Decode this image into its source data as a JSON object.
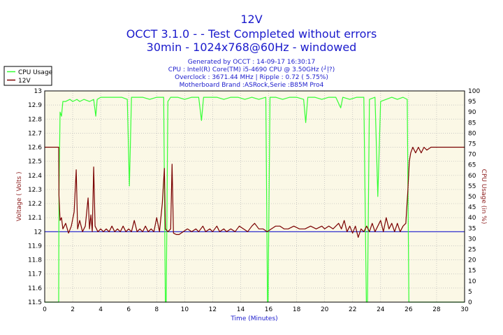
{
  "header": {
    "title": "12V",
    "line2": "OCCT 3.1.0 -  - Test Completed without errors",
    "line3": "30min - 1024x768@60Hz - windowed",
    "info": [
      "Generated by OCCT : 14-09-17 16:30:17",
      "CPU : Intel(R) Core(TM) i5-4690 CPU @ 3.50GHz (┘ļ?)",
      "Overclock : 3671.44 MHz | Ripple : 0.72 ( 5.75%)",
      "Motherboard Brand :ASRock,Serie :B85M Pro4"
    ]
  },
  "colors": {
    "background": "#fbf8e6",
    "grid": "#b8b8b8",
    "cpu_usage": "#33ff33",
    "voltage": "#7a0000",
    "reference": "#1a1acc",
    "title": "#1a1acc"
  },
  "chart_data": {
    "type": "line",
    "xlabel": "Time (Minutes)",
    "ylabel": "Voltage ( Volts )",
    "y2label": "CPU Usage (in %)",
    "xlim": [
      0,
      30
    ],
    "ylim": [
      11.5,
      13
    ],
    "y2lim": [
      0,
      100
    ],
    "x_ticks": [
      "0",
      "2",
      "4",
      "6",
      "8",
      "10",
      "12",
      "14",
      "16",
      "18",
      "20",
      "22",
      "24",
      "26",
      "28",
      "30"
    ],
    "y_ticks": [
      "11.5",
      "11.6",
      "11.7",
      "11.8",
      "11.9",
      "12",
      "12.1",
      "12.2",
      "12.3",
      "12.4",
      "12.5",
      "12.6",
      "12.7",
      "12.8",
      "12.9",
      "13"
    ],
    "y2_ticks": [
      "0",
      "5",
      "10",
      "15",
      "20",
      "25",
      "30",
      "35",
      "40",
      "45",
      "50",
      "55",
      "60",
      "65",
      "70",
      "75",
      "80",
      "85",
      "90",
      "95",
      "100"
    ],
    "grid": true,
    "legend_position": "top-left",
    "reference_line": 12.0,
    "series": [
      {
        "name": "CPU Usage",
        "axis": "right",
        "points": [
          [
            0,
            0
          ],
          [
            1.0,
            0
          ],
          [
            1.02,
            50
          ],
          [
            1.1,
            90
          ],
          [
            1.2,
            88
          ],
          [
            1.3,
            95
          ],
          [
            1.5,
            95
          ],
          [
            1.8,
            96
          ],
          [
            2.0,
            95
          ],
          [
            2.3,
            96
          ],
          [
            2.5,
            95
          ],
          [
            2.8,
            96
          ],
          [
            3.2,
            95
          ],
          [
            3.5,
            96
          ],
          [
            3.65,
            88
          ],
          [
            3.75,
            96
          ],
          [
            4.0,
            97
          ],
          [
            4.5,
            97
          ],
          [
            5.0,
            97
          ],
          [
            5.5,
            97
          ],
          [
            5.9,
            96
          ],
          [
            6.05,
            55
          ],
          [
            6.2,
            97
          ],
          [
            6.5,
            97
          ],
          [
            7.0,
            97
          ],
          [
            7.5,
            96
          ],
          [
            8.0,
            97
          ],
          [
            8.5,
            97
          ],
          [
            8.62,
            0
          ],
          [
            8.68,
            0
          ],
          [
            8.8,
            95
          ],
          [
            9.0,
            97
          ],
          [
            9.5,
            97
          ],
          [
            10.0,
            96
          ],
          [
            10.5,
            97
          ],
          [
            11.0,
            97
          ],
          [
            11.2,
            86
          ],
          [
            11.35,
            97
          ],
          [
            11.8,
            97
          ],
          [
            12.3,
            97
          ],
          [
            12.8,
            96
          ],
          [
            13.3,
            97
          ],
          [
            13.8,
            97
          ],
          [
            14.3,
            96
          ],
          [
            14.8,
            97
          ],
          [
            15.3,
            96
          ],
          [
            15.8,
            97
          ],
          [
            15.92,
            0
          ],
          [
            15.96,
            0
          ],
          [
            16.1,
            97
          ],
          [
            16.5,
            97
          ],
          [
            17.0,
            96
          ],
          [
            17.5,
            97
          ],
          [
            18.0,
            97
          ],
          [
            18.5,
            96
          ],
          [
            18.65,
            85
          ],
          [
            18.8,
            97
          ],
          [
            19.3,
            97
          ],
          [
            19.8,
            96
          ],
          [
            20.3,
            97
          ],
          [
            20.8,
            97
          ],
          [
            21.15,
            92
          ],
          [
            21.3,
            97
          ],
          [
            21.8,
            96
          ],
          [
            22.3,
            97
          ],
          [
            22.8,
            97
          ],
          [
            22.98,
            0
          ],
          [
            23.06,
            0
          ],
          [
            23.2,
            96
          ],
          [
            23.6,
            97
          ],
          [
            23.8,
            50
          ],
          [
            24.0,
            95
          ],
          [
            24.4,
            96
          ],
          [
            24.8,
            97
          ],
          [
            25.2,
            96
          ],
          [
            25.6,
            97
          ],
          [
            25.9,
            96
          ],
          [
            26.02,
            0
          ],
          [
            26.2,
            0
          ],
          [
            30,
            0
          ]
        ]
      },
      {
        "name": "12V",
        "axis": "left",
        "points": [
          [
            0,
            12.6
          ],
          [
            1.0,
            12.6
          ],
          [
            1.02,
            12.26
          ],
          [
            1.1,
            12.08
          ],
          [
            1.2,
            12.1
          ],
          [
            1.3,
            12.02
          ],
          [
            1.5,
            12.06
          ],
          [
            1.7,
            11.99
          ],
          [
            1.9,
            12.04
          ],
          [
            2.1,
            12.14
          ],
          [
            2.25,
            12.44
          ],
          [
            2.35,
            12.02
          ],
          [
            2.5,
            12.08
          ],
          [
            2.7,
            12.0
          ],
          [
            2.9,
            12.04
          ],
          [
            3.1,
            12.24
          ],
          [
            3.2,
            12.02
          ],
          [
            3.3,
            12.12
          ],
          [
            3.4,
            12.0
          ],
          [
            3.5,
            12.46
          ],
          [
            3.6,
            12.04
          ],
          [
            3.8,
            12.0
          ],
          [
            4.0,
            12.02
          ],
          [
            4.2,
            12.0
          ],
          [
            4.4,
            12.02
          ],
          [
            4.6,
            12.0
          ],
          [
            4.8,
            12.04
          ],
          [
            5.0,
            12.0
          ],
          [
            5.2,
            12.02
          ],
          [
            5.4,
            12.0
          ],
          [
            5.6,
            12.04
          ],
          [
            5.8,
            12.0
          ],
          [
            6.0,
            12.02
          ],
          [
            6.2,
            12.0
          ],
          [
            6.4,
            12.08
          ],
          [
            6.6,
            12.0
          ],
          [
            6.8,
            12.02
          ],
          [
            7.0,
            12.0
          ],
          [
            7.2,
            12.04
          ],
          [
            7.4,
            12.0
          ],
          [
            7.6,
            12.02
          ],
          [
            7.8,
            12.0
          ],
          [
            8.0,
            12.1
          ],
          [
            8.2,
            12.0
          ],
          [
            8.4,
            12.2
          ],
          [
            8.55,
            12.45
          ],
          [
            8.62,
            12.02
          ],
          [
            8.8,
            12.0
          ],
          [
            9.0,
            12.02
          ],
          [
            9.1,
            12.48
          ],
          [
            9.2,
            11.99
          ],
          [
            9.4,
            11.98
          ],
          [
            9.6,
            11.98
          ],
          [
            9.9,
            12.0
          ],
          [
            10.2,
            12.02
          ],
          [
            10.5,
            12.0
          ],
          [
            10.8,
            12.02
          ],
          [
            11.0,
            12.0
          ],
          [
            11.3,
            12.04
          ],
          [
            11.5,
            12.0
          ],
          [
            11.8,
            12.02
          ],
          [
            12.0,
            12.0
          ],
          [
            12.3,
            12.04
          ],
          [
            12.5,
            12.0
          ],
          [
            12.8,
            12.02
          ],
          [
            13.0,
            12.0
          ],
          [
            13.3,
            12.02
          ],
          [
            13.6,
            12.0
          ],
          [
            13.9,
            12.04
          ],
          [
            14.2,
            12.02
          ],
          [
            14.5,
            12.0
          ],
          [
            14.8,
            12.04
          ],
          [
            15.0,
            12.06
          ],
          [
            15.3,
            12.02
          ],
          [
            15.6,
            12.02
          ],
          [
            15.9,
            12.0
          ],
          [
            16.2,
            12.02
          ],
          [
            16.5,
            12.04
          ],
          [
            16.8,
            12.04
          ],
          [
            17.1,
            12.02
          ],
          [
            17.4,
            12.02
          ],
          [
            17.8,
            12.04
          ],
          [
            18.2,
            12.02
          ],
          [
            18.6,
            12.02
          ],
          [
            19.0,
            12.04
          ],
          [
            19.4,
            12.02
          ],
          [
            19.8,
            12.04
          ],
          [
            20.0,
            12.02
          ],
          [
            20.3,
            12.04
          ],
          [
            20.6,
            12.02
          ],
          [
            21.0,
            12.06
          ],
          [
            21.2,
            12.02
          ],
          [
            21.4,
            12.08
          ],
          [
            21.6,
            12.0
          ],
          [
            21.8,
            12.04
          ],
          [
            22.0,
            11.99
          ],
          [
            22.2,
            12.04
          ],
          [
            22.4,
            11.96
          ],
          [
            22.6,
            12.02
          ],
          [
            22.8,
            12.0
          ],
          [
            23.0,
            12.04
          ],
          [
            23.2,
            12.0
          ],
          [
            23.4,
            12.06
          ],
          [
            23.6,
            12.0
          ],
          [
            23.8,
            12.04
          ],
          [
            24.0,
            12.08
          ],
          [
            24.2,
            12.0
          ],
          [
            24.4,
            12.1
          ],
          [
            24.6,
            12.02
          ],
          [
            24.8,
            12.06
          ],
          [
            25.0,
            12.0
          ],
          [
            25.2,
            12.06
          ],
          [
            25.4,
            12.0
          ],
          [
            25.6,
            12.04
          ],
          [
            25.8,
            12.06
          ],
          [
            25.95,
            12.3
          ],
          [
            26.05,
            12.5
          ],
          [
            26.15,
            12.56
          ],
          [
            26.3,
            12.6
          ],
          [
            26.5,
            12.56
          ],
          [
            26.7,
            12.6
          ],
          [
            26.9,
            12.56
          ],
          [
            27.1,
            12.6
          ],
          [
            27.3,
            12.58
          ],
          [
            27.6,
            12.6
          ],
          [
            30,
            12.6
          ]
        ]
      }
    ]
  }
}
